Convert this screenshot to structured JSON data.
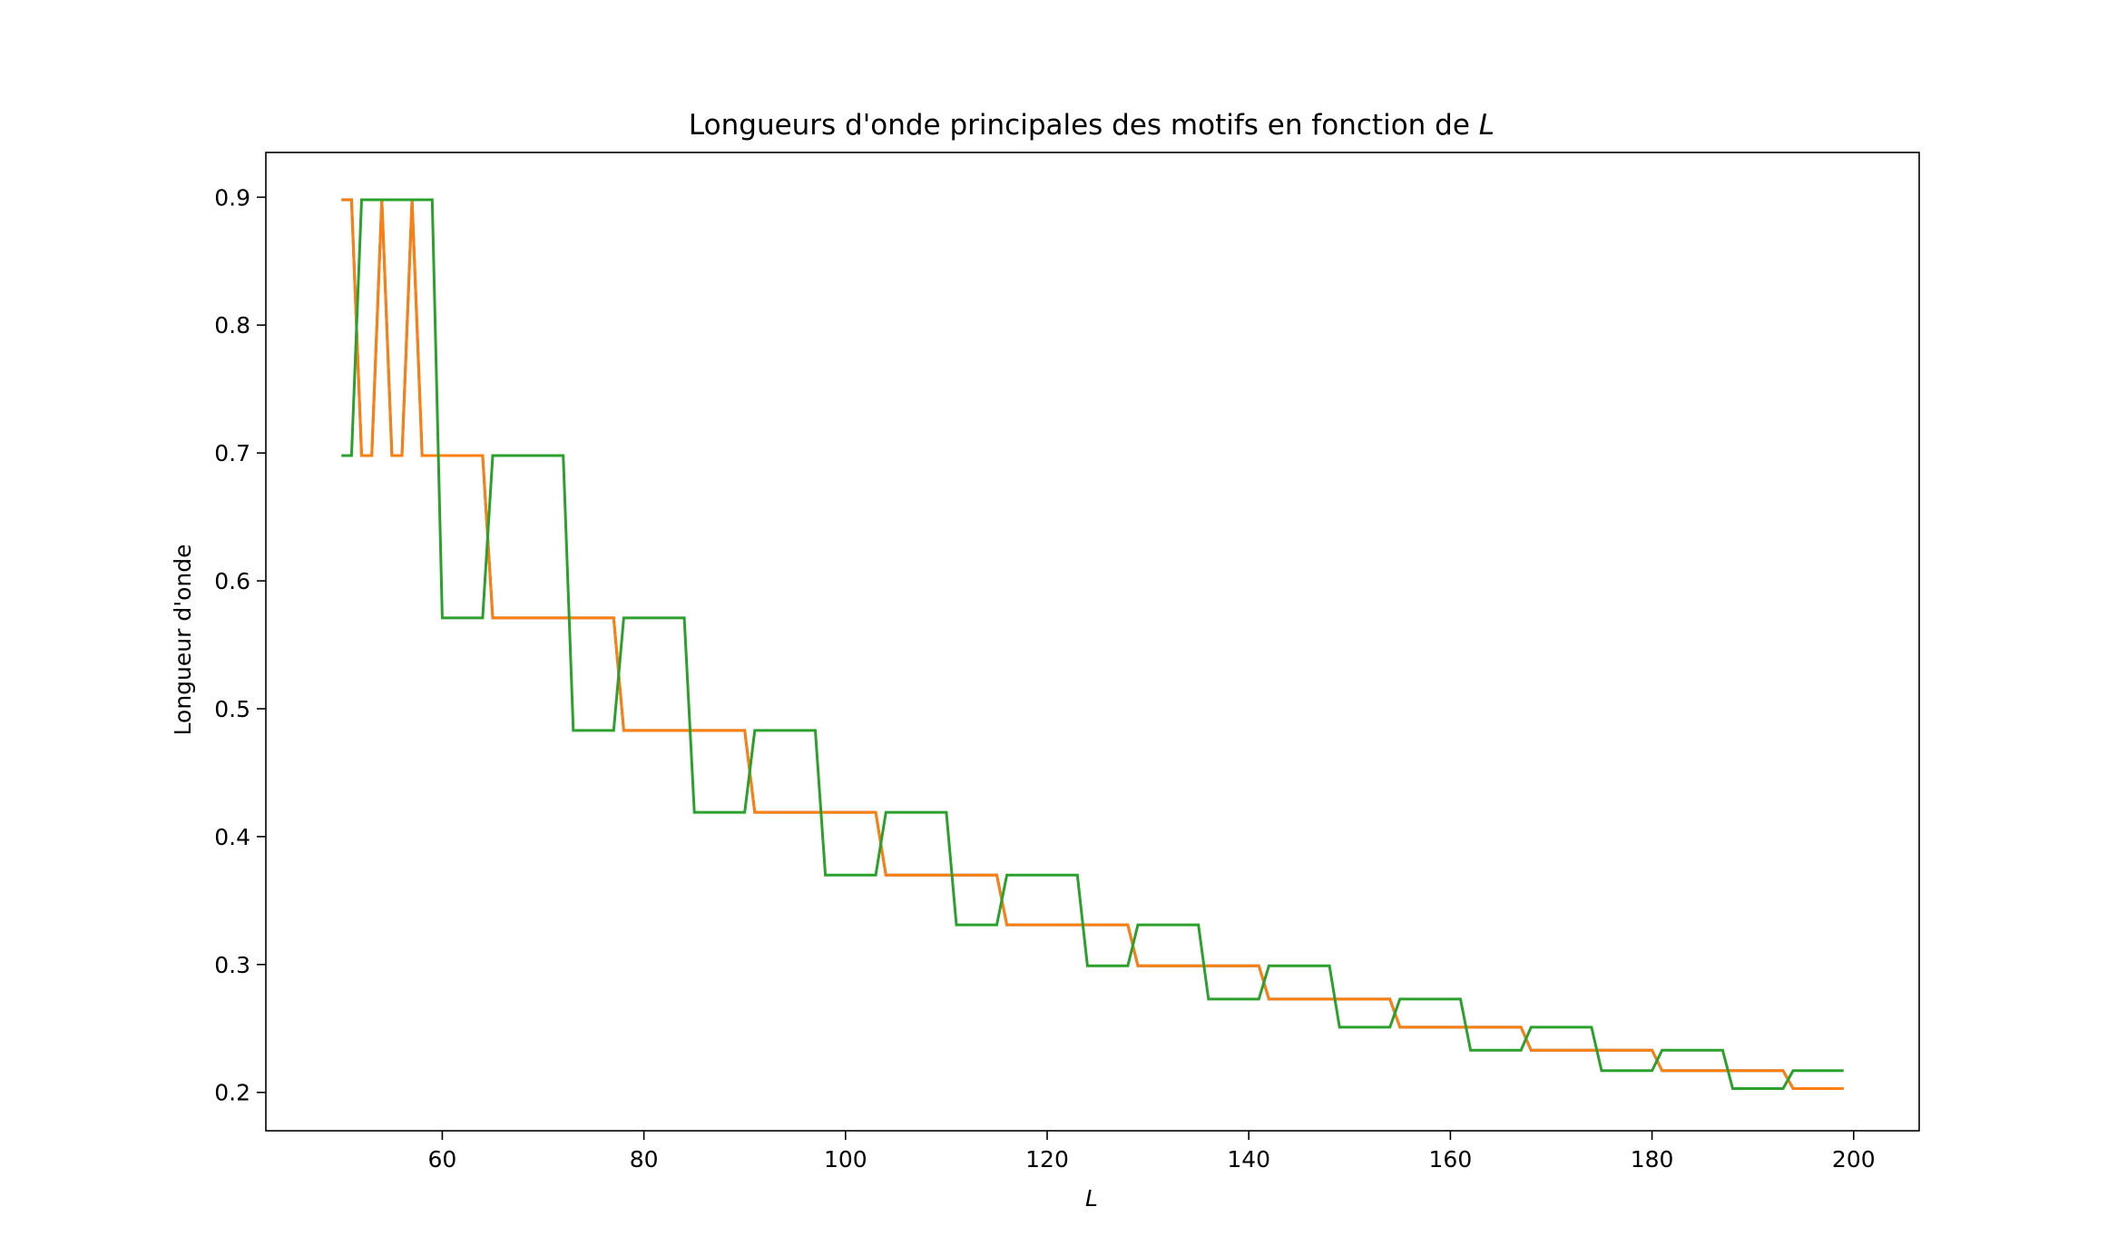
{
  "chart_data": {
    "type": "line",
    "title": "Longueurs d'onde principales des motifs en fonction de ",
    "title_var": "L",
    "xlabel": "L",
    "ylabel": "Longueur d'onde",
    "xlim": [
      42.5,
      206.5
    ],
    "ylim": [
      0.17,
      0.935
    ],
    "x_ticks": [
      60,
      80,
      100,
      120,
      140,
      160,
      180,
      200
    ],
    "x_tick_labels": [
      "60",
      "80",
      "100",
      "120",
      "140",
      "160",
      "180",
      "200"
    ],
    "y_ticks": [
      0.2,
      0.3,
      0.4,
      0.5,
      0.6,
      0.7,
      0.8,
      0.9
    ],
    "y_tick_labels": [
      "0.2",
      "0.3",
      "0.4",
      "0.5",
      "0.6",
      "0.7",
      "0.8",
      "0.9"
    ],
    "grid": false,
    "legend": "none",
    "series": [
      {
        "color": "#1f77b4",
        "points": [
          [
            50,
            0.898
          ],
          [
            51,
            0.898
          ],
          [
            52,
            0.698
          ],
          [
            53,
            0.698
          ],
          [
            54,
            0.898
          ],
          [
            55,
            0.698
          ],
          [
            56,
            0.698
          ],
          [
            57,
            0.898
          ],
          [
            58,
            0.698
          ],
          [
            64,
            0.698
          ],
          [
            65,
            0.571
          ],
          [
            77,
            0.571
          ],
          [
            78,
            0.483
          ],
          [
            90,
            0.483
          ],
          [
            91,
            0.419
          ],
          [
            103,
            0.419
          ],
          [
            104,
            0.37
          ],
          [
            115,
            0.37
          ],
          [
            116,
            0.331
          ],
          [
            128,
            0.331
          ],
          [
            129,
            0.299
          ],
          [
            141,
            0.299
          ],
          [
            142,
            0.273
          ],
          [
            154,
            0.273
          ],
          [
            155,
            0.251
          ],
          [
            167,
            0.251
          ],
          [
            168,
            0.233
          ],
          [
            180,
            0.233
          ],
          [
            181,
            0.217
          ],
          [
            193,
            0.217
          ],
          [
            194,
            0.203
          ],
          [
            199,
            0.203
          ]
        ]
      },
      {
        "color": "#ff7f0e",
        "points": [
          [
            50,
            0.898
          ],
          [
            51,
            0.898
          ],
          [
            52,
            0.698
          ],
          [
            53,
            0.698
          ],
          [
            54,
            0.898
          ],
          [
            55,
            0.698
          ],
          [
            56,
            0.698
          ],
          [
            57,
            0.898
          ],
          [
            58,
            0.698
          ],
          [
            64,
            0.698
          ],
          [
            65,
            0.571
          ],
          [
            77,
            0.571
          ],
          [
            78,
            0.483
          ],
          [
            90,
            0.483
          ],
          [
            91,
            0.419
          ],
          [
            103,
            0.419
          ],
          [
            104,
            0.37
          ],
          [
            115,
            0.37
          ],
          [
            116,
            0.331
          ],
          [
            128,
            0.331
          ],
          [
            129,
            0.299
          ],
          [
            141,
            0.299
          ],
          [
            142,
            0.273
          ],
          [
            154,
            0.273
          ],
          [
            155,
            0.251
          ],
          [
            167,
            0.251
          ],
          [
            168,
            0.233
          ],
          [
            180,
            0.233
          ],
          [
            181,
            0.217
          ],
          [
            193,
            0.217
          ],
          [
            194,
            0.203
          ],
          [
            199,
            0.203
          ]
        ]
      },
      {
        "color": "#2ca02c",
        "points": [
          [
            50,
            0.698
          ],
          [
            51,
            0.698
          ],
          [
            52,
            0.898
          ],
          [
            59,
            0.898
          ],
          [
            60,
            0.571
          ],
          [
            64,
            0.571
          ],
          [
            65,
            0.698
          ],
          [
            72,
            0.698
          ],
          [
            73,
            0.483
          ],
          [
            77,
            0.483
          ],
          [
            78,
            0.571
          ],
          [
            84,
            0.571
          ],
          [
            85,
            0.419
          ],
          [
            90,
            0.419
          ],
          [
            91,
            0.483
          ],
          [
            97,
            0.483
          ],
          [
            98,
            0.37
          ],
          [
            103,
            0.37
          ],
          [
            104,
            0.419
          ],
          [
            110,
            0.419
          ],
          [
            111,
            0.331
          ],
          [
            115,
            0.331
          ],
          [
            116,
            0.37
          ],
          [
            123,
            0.37
          ],
          [
            124,
            0.299
          ],
          [
            128,
            0.299
          ],
          [
            129,
            0.331
          ],
          [
            135,
            0.331
          ],
          [
            136,
            0.273
          ],
          [
            141,
            0.273
          ],
          [
            142,
            0.299
          ],
          [
            148,
            0.299
          ],
          [
            149,
            0.251
          ],
          [
            154,
            0.251
          ],
          [
            155,
            0.273
          ],
          [
            161,
            0.273
          ],
          [
            162,
            0.233
          ],
          [
            167,
            0.233
          ],
          [
            168,
            0.251
          ],
          [
            174,
            0.251
          ],
          [
            175,
            0.217
          ],
          [
            180,
            0.217
          ],
          [
            181,
            0.233
          ],
          [
            187,
            0.233
          ],
          [
            188,
            0.203
          ],
          [
            193,
            0.203
          ],
          [
            194,
            0.217
          ],
          [
            199,
            0.217
          ]
        ]
      }
    ]
  }
}
